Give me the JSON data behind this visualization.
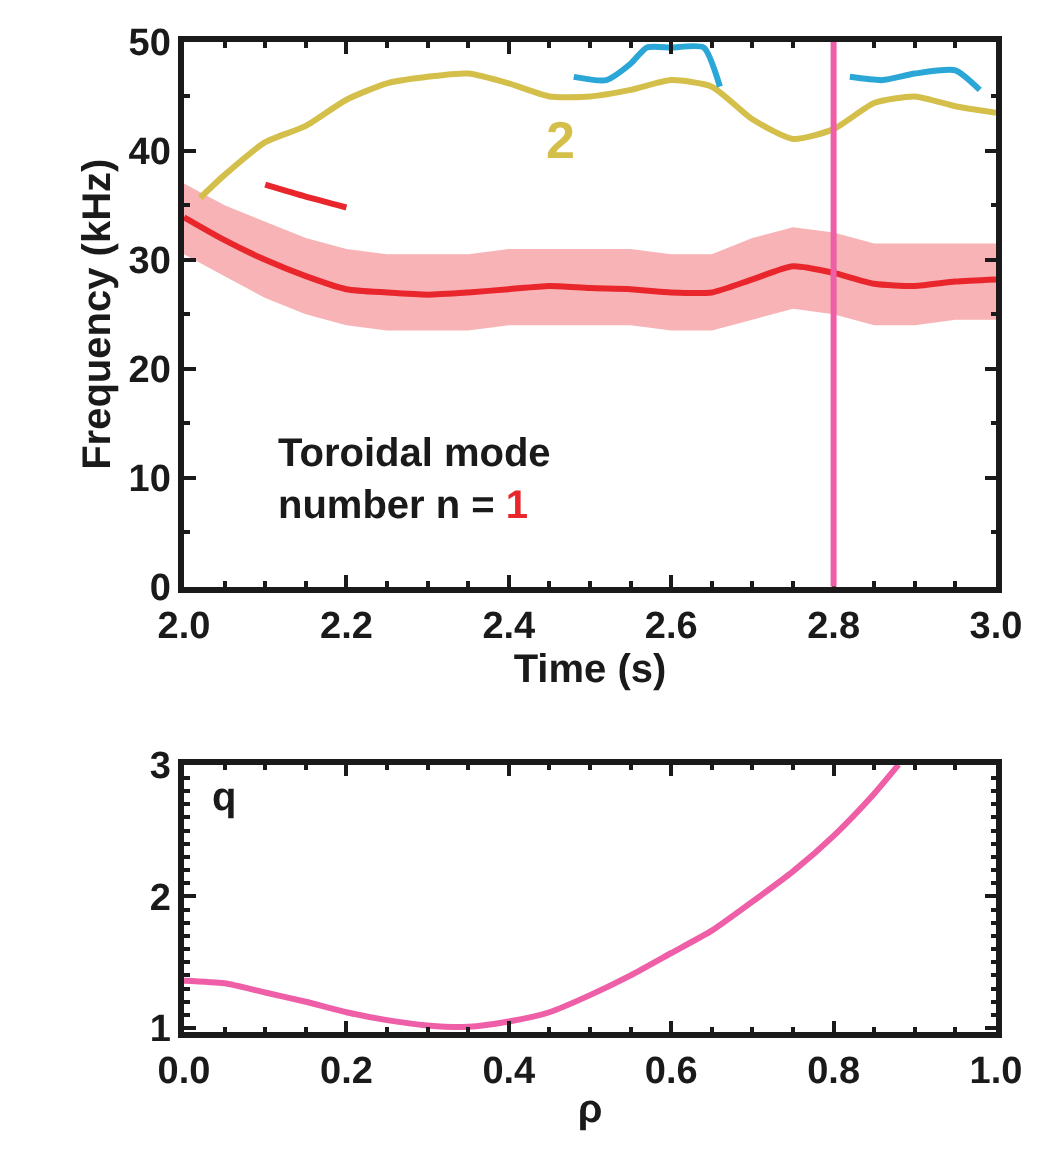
{
  "chart_data": [
    {
      "type": "line",
      "xlabel": "Time (s)",
      "ylabel": "Frequency (kHz)",
      "xlim": [
        2.0,
        3.0
      ],
      "xticks": [
        {
          "value": 2.0,
          "label": "2.0"
        },
        2.2,
        2.4,
        2.6,
        2.8,
        {
          "value": 3.0,
          "label": "3.0"
        }
      ],
      "ylim": [
        0,
        50
      ],
      "yticks": [
        0,
        10,
        20,
        30,
        40,
        50
      ],
      "marker": "none",
      "line_style": "solid",
      "series": [
        {
          "color": "#e8262b",
          "x": [
            2.0,
            2.05,
            2.1,
            2.15,
            2.2,
            2.25,
            2.3,
            2.35,
            2.4,
            2.45,
            2.5,
            2.55,
            2.6,
            2.65,
            2.7,
            2.75,
            2.8,
            2.85,
            2.9,
            2.95,
            3.0
          ],
          "values": [
            33.9,
            31.8,
            30.0,
            28.5,
            27.3,
            27.0,
            26.8,
            27.0,
            27.3,
            27.6,
            27.4,
            27.3,
            27.0,
            27.0,
            28.2,
            29.4,
            28.8,
            27.8,
            27.6,
            28.0,
            28.2
          ],
          "lower": [
            30.5,
            28.5,
            26.5,
            25.0,
            24.0,
            23.5,
            23.5,
            23.5,
            24.0,
            24.0,
            24.0,
            24.0,
            23.5,
            23.5,
            24.5,
            25.5,
            25.0,
            24.0,
            24.0,
            24.5,
            24.5
          ],
          "upper": [
            37.0,
            35.0,
            33.5,
            32.0,
            31.0,
            30.5,
            30.5,
            30.5,
            31.0,
            31.0,
            31.0,
            31.0,
            30.5,
            30.5,
            32.0,
            33.0,
            32.5,
            31.5,
            31.5,
            31.5,
            31.5
          ]
        },
        {
          "color": "#e8262b",
          "x": [
            2.1,
            2.15,
            2.2
          ],
          "values": [
            36.9,
            35.8,
            34.8
          ]
        },
        {
          "color": "#d4bf4a",
          "x": [
            2.02,
            2.05,
            2.1,
            2.15,
            2.2,
            2.25,
            2.3,
            2.35,
            2.4,
            2.45,
            2.5,
            2.55,
            2.6,
            2.65,
            2.7,
            2.75,
            2.8,
            2.85,
            2.9,
            2.95,
            3.0
          ],
          "values": [
            35.7,
            37.8,
            40.8,
            42.3,
            44.7,
            46.2,
            46.8,
            47.1,
            46.2,
            45.0,
            45.0,
            45.6,
            46.5,
            45.9,
            42.9,
            41.1,
            42.0,
            44.4,
            45.0,
            44.1,
            43.5
          ]
        },
        {
          "color": "#2aa7d6",
          "x": [
            2.48,
            2.52,
            2.55,
            2.57,
            2.6,
            2.64,
            2.66,
            2.75,
            2.82,
            2.86,
            2.9,
            2.95,
            2.98
          ],
          "values": [
            46.8,
            46.5,
            48.0,
            49.5,
            49.5,
            49.5,
            45.9,
            null,
            46.8,
            46.5,
            47.1,
            47.4,
            45.6
          ]
        }
      ],
      "ref_lines": [
        {
          "axis": "x",
          "value": 2.8,
          "color": "#ee5fa7"
        }
      ],
      "annotations": [
        "2",
        "Toroidal mode\nnumber n = 1"
      ]
    },
    {
      "type": "line",
      "xlabel": "ρ",
      "xlim": [
        0.0,
        1.0
      ],
      "xticks": [
        {
          "value": 0.0,
          "label": "0.0"
        },
        0.2,
        0.4,
        0.6,
        0.8,
        {
          "value": 1.0,
          "label": "1.0"
        }
      ],
      "ylim": [
        0.97,
        3
      ],
      "yticks": [
        1,
        2,
        3
      ],
      "marker": "none",
      "line_style": "solid",
      "series": [
        {
          "color": "#ee5fa7",
          "x": [
            0.0,
            0.05,
            0.1,
            0.15,
            0.2,
            0.25,
            0.3,
            0.35,
            0.4,
            0.45,
            0.5,
            0.55,
            0.6,
            0.65,
            0.7,
            0.75,
            0.8,
            0.85,
            0.88
          ],
          "values": [
            1.36,
            1.34,
            1.27,
            1.2,
            1.12,
            1.06,
            1.02,
            1.01,
            1.05,
            1.12,
            1.25,
            1.4,
            1.57,
            1.74,
            1.96,
            2.19,
            2.46,
            2.78,
            3.0
          ]
        }
      ],
      "annotations": [
        "q"
      ]
    }
  ]
}
